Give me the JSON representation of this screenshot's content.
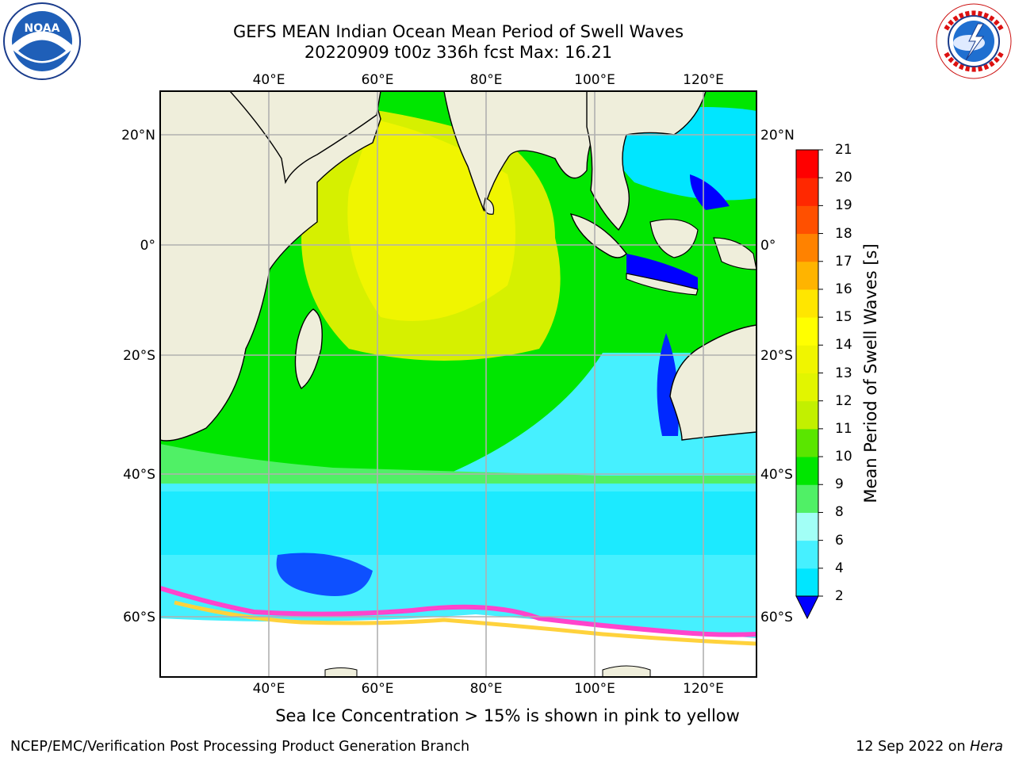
{
  "title": {
    "line1": "GEFS MEAN Indian Ocean Mean Period of Swell Waves",
    "line2": "20220909 t00z 336h fcst   Max: 16.21"
  },
  "logos": {
    "left": {
      "icon": "noaa-logo-icon",
      "text": "NOAA"
    },
    "right": {
      "icon": "nws-logo-icon",
      "text": "NATIONAL WEATHER SERVICE"
    }
  },
  "map": {
    "lon_labels": [
      "40°E",
      "60°E",
      "80°E",
      "100°E",
      "120°E"
    ],
    "lat_labels": [
      "20°N",
      "0°",
      "20°S",
      "40°S",
      "60°S"
    ],
    "extent": {
      "lon": [
        20,
        130
      ],
      "lat": [
        -70,
        26
      ]
    },
    "colors": {
      "land": "#efeedb",
      "ice": "#ff44cc"
    }
  },
  "colorbar": {
    "label": "Mean Period of Swell Waves [s]",
    "ticks": [
      "2",
      "4",
      "6",
      "8",
      "9",
      "10",
      "11",
      "12",
      "13",
      "14",
      "15",
      "16",
      "17",
      "18",
      "19",
      "20",
      "21"
    ],
    "colors": [
      "#0028ff",
      "#00e6ff",
      "#46f0ff",
      "#a2fff6",
      "#50f066",
      "#00e600",
      "#5ae600",
      "#c2f000",
      "#e2f500",
      "#f0f500",
      "#ffff00",
      "#ffe600",
      "#ffb400",
      "#ff8200",
      "#ff5000",
      "#ff2800",
      "#ff0000"
    ],
    "extend_color": "#0000ff"
  },
  "footer": {
    "ice_note": "Sea Ice Concentration > 15% is shown in pink to yellow",
    "credit": "NCEP/EMC/Verification Post Processing Product Generation Branch",
    "date": "12 Sep 2022 on ",
    "machine": "Hera"
  }
}
